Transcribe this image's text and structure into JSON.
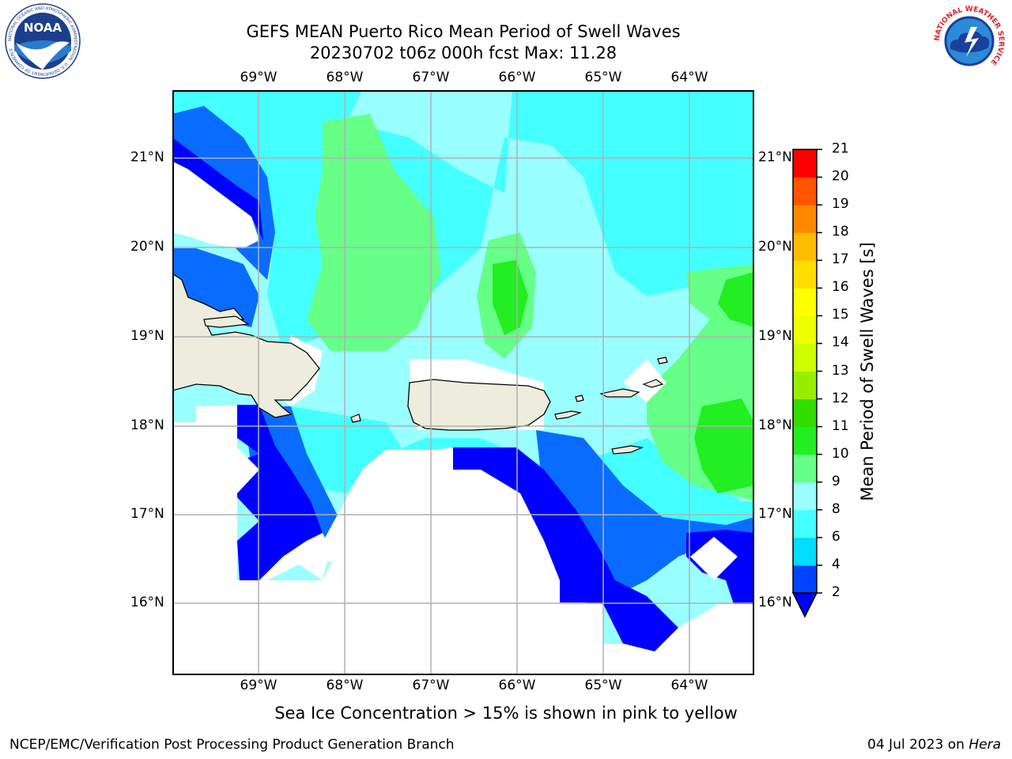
{
  "title": {
    "line1": "GEFS MEAN Puerto Rico Mean Period of Swell Waves",
    "line2": "20230702 t06z 000h fcst   Max: 11.28"
  },
  "map": {
    "lon_labels": [
      "69°W",
      "68°W",
      "67°W",
      "66°W",
      "65°W",
      "64°W"
    ],
    "lat_labels": [
      "21°N",
      "20°N",
      "19°N",
      "18°N",
      "17°N",
      "16°N"
    ],
    "land_color": "#eeecdc",
    "gridline_color": "#b0b0b0"
  },
  "colorbar": {
    "label": "Mean Period of Swell Waves [s]",
    "ticks": [
      "2",
      "4",
      "6",
      "8",
      "9",
      "10",
      "11",
      "12",
      "13",
      "14",
      "15",
      "16",
      "17",
      "18",
      "19",
      "20",
      "21"
    ],
    "colors": [
      "#0044ff",
      "#00ddff",
      "#44ffff",
      "#99ffff",
      "#66ff88",
      "#22ee22",
      "#33dd00",
      "#99ee00",
      "#ccff00",
      "#eeff00",
      "#ffff00",
      "#ffdd00",
      "#ffbb00",
      "#ff8800",
      "#ff5500",
      "#ff2200",
      "#ff0000"
    ],
    "under_color": "#0000ff"
  },
  "note": "Sea Ice Concentration > 15% is shown in pink to yellow",
  "footer": {
    "left": "NCEP/EMC/Verification Post Processing Product Generation Branch",
    "right_date": "04 Jul 2023 on ",
    "right_host": "Hera"
  },
  "logos": {
    "noaa_text": "NOAA",
    "noaa_ring": "NATIONAL OCEANIC AND ATMOSPHERIC ADMINISTRATION · U.S. DEPARTMENT OF COMMERCE",
    "nws_ring": "NATIONAL WEATHER SERVICE"
  }
}
